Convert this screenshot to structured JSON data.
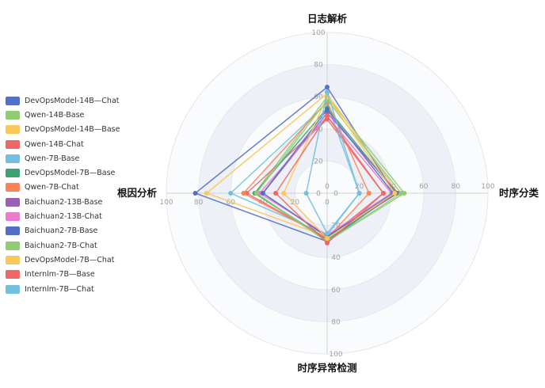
{
  "chart_data": {
    "type": "radar",
    "indicators": [
      "日志解析",
      "时序分类",
      "时序异常检测",
      "根因分析"
    ],
    "max": 100,
    "ticks": [
      "0",
      "20",
      "40",
      "60",
      "80",
      "100"
    ],
    "series": [
      {
        "name": "DevOpsModel-14B—Chat",
        "color": "#5470c6",
        "values": [
          66,
          42,
          30,
          82
        ]
      },
      {
        "name": "Qwen-14B-Base",
        "color": "#91cc75",
        "values": [
          60,
          48,
          30,
          45
        ]
      },
      {
        "name": "DevOpsModel-14B—Base",
        "color": "#fac858",
        "values": [
          62,
          44,
          27,
          75
        ]
      },
      {
        "name": "Qwen-14B-Chat",
        "color": "#ee6666",
        "values": [
          46,
          35,
          28,
          50
        ]
      },
      {
        "name": "Qwen-7B-Base",
        "color": "#73c0de",
        "values": [
          56,
          20,
          26,
          60
        ]
      },
      {
        "name": "DevOpsModel-7B—Base",
        "color": "#3ba272",
        "values": [
          53,
          43,
          29,
          45
        ]
      },
      {
        "name": "Qwen-7B-Chat",
        "color": "#fc8452",
        "values": [
          57,
          26,
          28,
          52
        ]
      },
      {
        "name": "Baichuan2-13B-Base",
        "color": "#9a60b4",
        "values": [
          50,
          44,
          27,
          40
        ]
      },
      {
        "name": "Baichuan2-13B-Chat",
        "color": "#ea7ccc",
        "values": [
          48,
          40,
          26,
          42
        ]
      },
      {
        "name": "Baichuan2-7B-Base",
        "color": "#5470c6",
        "values": [
          52,
          41,
          27,
          40
        ]
      },
      {
        "name": "Baichuan2-7B-Chat",
        "color": "#91cc75",
        "values": [
          58,
          46,
          30,
          44
        ]
      },
      {
        "name": "DevOpsModel-7B—Chat",
        "color": "#fac858",
        "values": [
          60,
          42,
          28,
          27
        ]
      },
      {
        "name": "Internlm-7B—Base",
        "color": "#ee6666",
        "values": [
          48,
          35,
          31,
          32
        ]
      },
      {
        "name": "Internlm-7B—Chat",
        "color": "#73c0de",
        "values": [
          63,
          20,
          25,
          13
        ]
      }
    ]
  }
}
